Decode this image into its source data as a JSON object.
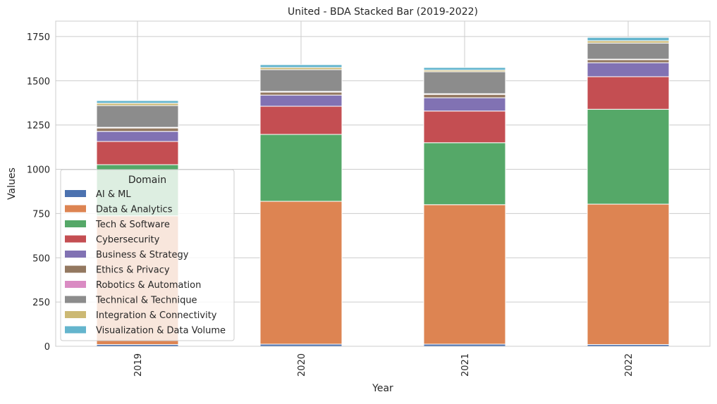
{
  "chart_data": {
    "type": "bar",
    "stacked": true,
    "title": "United - BDA Stacked Bar (2019-2022)",
    "xlabel": "Year",
    "ylabel": "Values",
    "categories": [
      "2019",
      "2020",
      "2021",
      "2022"
    ],
    "ylim": [
      0,
      1837
    ],
    "yticks": [
      0,
      250,
      500,
      750,
      1000,
      1250,
      1500,
      1750
    ],
    "grid": true,
    "legend": {
      "title": "Domain",
      "placement": "lower-left"
    },
    "series": [
      {
        "name": "AI & ML",
        "color": "#4c72b0",
        "values": [
          10,
          12,
          12,
          10
        ]
      },
      {
        "name": "Data & Analytics",
        "color": "#dd8452",
        "values": [
          727,
          807,
          788,
          793
        ]
      },
      {
        "name": "Tech & Software",
        "color": "#55a868",
        "values": [
          289,
          378,
          350,
          536
        ]
      },
      {
        "name": "Cybersecurity",
        "color": "#c44e52",
        "values": [
          131,
          159,
          179,
          184
        ]
      },
      {
        "name": "Business & Strategy",
        "color": "#8172b3",
        "values": [
          57,
          63,
          75,
          79
        ]
      },
      {
        "name": "Ethics & Privacy",
        "color": "#937860",
        "values": [
          19,
          17,
          19,
          17
        ]
      },
      {
        "name": "Robotics & Automation",
        "color": "#da8bc3",
        "values": [
          4,
          4,
          4,
          3
        ]
      },
      {
        "name": "Technical & Technique",
        "color": "#8c8c8c",
        "values": [
          123,
          123,
          124,
          91
        ]
      },
      {
        "name": "Integration & Connectivity",
        "color": "#ccb974",
        "values": [
          13,
          12,
          9,
          13
        ]
      },
      {
        "name": "Visualization & Data Volume",
        "color": "#64b5cd",
        "values": [
          15,
          16,
          15,
          19
        ]
      }
    ]
  }
}
